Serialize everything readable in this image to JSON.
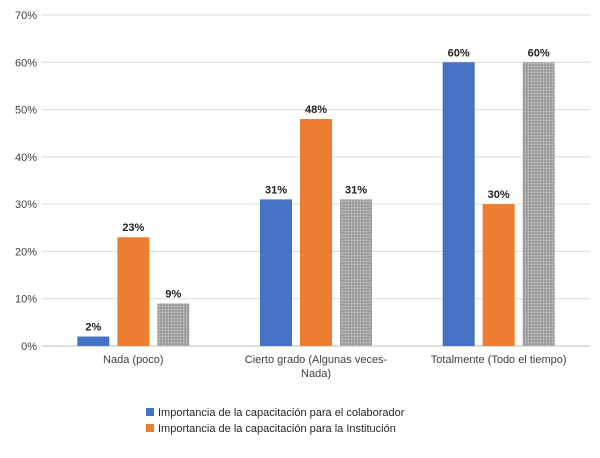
{
  "chart_data": {
    "type": "bar",
    "title": "",
    "xlabel": "",
    "ylabel": "",
    "ylim": [
      0,
      70
    ],
    "y_ticks": [
      "0%",
      "10%",
      "20%",
      "30%",
      "40%",
      "50%",
      "60%",
      "70%"
    ],
    "grid": true,
    "legend_position": "bottom",
    "categories": [
      "Nada (poco)",
      "Cierto grado (Algunas veces-Nada)",
      "Totalmente (Todo el tiempo)"
    ],
    "category_label_lines": [
      [
        "Nada (poco)"
      ],
      [
        "Cierto grado (Algunas veces-",
        "Nada)"
      ],
      [
        "Totalmente (Todo el tiempo)"
      ]
    ],
    "series": [
      {
        "name": "Importancia de la capacitación para el colaborador",
        "values": [
          2,
          31,
          60
        ],
        "labels": [
          "2%",
          "31%",
          "60%"
        ],
        "color": "#4472C4",
        "in_legend": true
      },
      {
        "name": "Importancia de la capacitación para la Institución",
        "values": [
          23,
          48,
          30
        ],
        "labels": [
          "23%",
          "48%",
          "30%"
        ],
        "color": "#ED7D31",
        "in_legend": true
      },
      {
        "name": "",
        "values": [
          9,
          31,
          60
        ],
        "labels": [
          "9%",
          "31%",
          "60%"
        ],
        "color": "#A5A5A5",
        "in_legend": false
      }
    ]
  }
}
